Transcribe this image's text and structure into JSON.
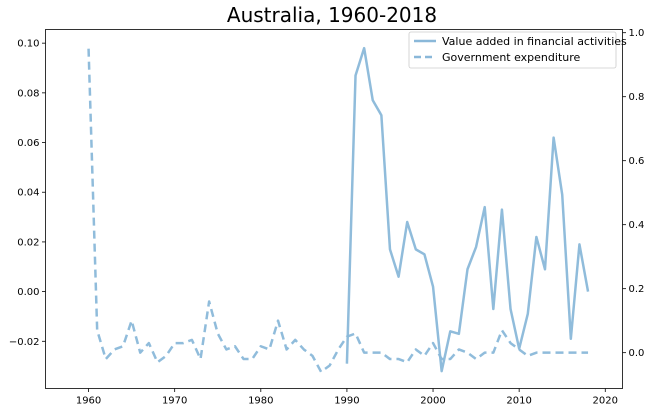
{
  "chart_data": {
    "type": "line",
    "title": "Australia, 1960-2018",
    "xlim": [
      1955,
      2022
    ],
    "x_ticks": [
      "1960",
      "1970",
      "1980",
      "1990",
      "2000",
      "2010",
      "2020"
    ],
    "ylim_left": [
      -0.039,
      0.1055
    ],
    "y_ticks_left": [
      "0.10",
      "0.08",
      "0.06",
      "0.04",
      "0.02",
      "0.00",
      "−0.02"
    ],
    "ylim_right": [
      -0.112,
      1.01
    ],
    "y_ticks_right": [
      "1.0",
      "0.8",
      "0.6",
      "0.4",
      "0.2",
      "0.0"
    ],
    "legend_position": "top-right",
    "colors": {
      "series": "#8ab8d9",
      "axis": "#000000",
      "background": "#ffffff"
    },
    "series": [
      {
        "name": "Value added in financial activities",
        "axis": "left",
        "style": "solid",
        "x": [
          1990,
          1991,
          1992,
          1993,
          1994,
          1995,
          1996,
          1997,
          1998,
          1999,
          2000,
          2001,
          2002,
          2003,
          2004,
          2005,
          2006,
          2007,
          2008,
          2009,
          2010,
          2011,
          2012,
          2013,
          2014,
          2015,
          2016,
          2017,
          2018
        ],
        "values": [
          -0.029,
          0.087,
          0.098,
          0.077,
          0.071,
          0.017,
          0.006,
          0.028,
          0.017,
          0.015,
          0.002,
          -0.032,
          -0.016,
          -0.017,
          0.009,
          0.018,
          0.034,
          -0.007,
          0.033,
          -0.007,
          -0.023,
          -0.009,
          0.022,
          0.009,
          0.062,
          0.039,
          -0.019,
          0.019,
          0.0
        ]
      },
      {
        "name": "Government expenditure",
        "axis": "right",
        "style": "dashed",
        "x": [
          1960,
          1961,
          1962,
          1963,
          1964,
          1965,
          1966,
          1967,
          1968,
          1969,
          1970,
          1971,
          1972,
          1973,
          1974,
          1975,
          1976,
          1977,
          1978,
          1979,
          1980,
          1981,
          1982,
          1983,
          1984,
          1985,
          1986,
          1987,
          1988,
          1989,
          1990,
          1991,
          1992,
          1993,
          1994,
          1995,
          1996,
          1997,
          1998,
          1999,
          2000,
          2001,
          2002,
          2003,
          2004,
          2005,
          2006,
          2007,
          2008,
          2009,
          2010,
          2011,
          2012,
          2013,
          2014,
          2015,
          2016,
          2017,
          2018
        ],
        "values": [
          0.95,
          0.07,
          -0.02,
          0.01,
          0.02,
          0.1,
          0.0,
          0.03,
          -0.03,
          -0.01,
          0.03,
          0.03,
          0.04,
          -0.02,
          0.16,
          0.06,
          0.01,
          0.02,
          -0.02,
          -0.02,
          0.02,
          0.01,
          0.1,
          0.01,
          0.04,
          0.01,
          -0.01,
          -0.06,
          -0.04,
          0.01,
          0.05,
          0.06,
          0.0,
          0.0,
          0.0,
          -0.02,
          -0.02,
          -0.03,
          0.01,
          -0.01,
          0.03,
          -0.02,
          -0.02,
          0.01,
          0.0,
          -0.02,
          0.0,
          0.0,
          0.07,
          0.03,
          0.01,
          -0.01,
          0.0,
          0.0,
          0.0,
          0.0,
          0.0,
          0.0,
          0.0
        ]
      }
    ]
  }
}
